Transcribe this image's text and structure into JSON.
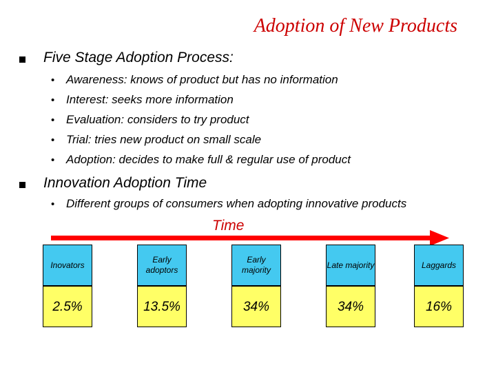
{
  "title": "Adoption of New Products",
  "section1": {
    "heading": "Five Stage Adoption Process:",
    "items": [
      "Awareness: knows of product but has no information",
      "Interest: seeks more information",
      "Evaluation: considers to try product",
      "Trial: tries new product on small scale",
      "Adoption: decides to make full & regular use of product"
    ]
  },
  "section2": {
    "heading": "Innovation Adoption Time",
    "items": [
      "Different groups of consumers when adopting innovative products"
    ]
  },
  "timeline": {
    "label": "Time",
    "groups": [
      {
        "name": "Inovators",
        "percent": "2.5%"
      },
      {
        "name": "Early adoptors",
        "percent": "13.5%"
      },
      {
        "name": "Early majority",
        "percent": "34%"
      },
      {
        "name": "Late majority",
        "percent": "34%"
      },
      {
        "name": "Laggards",
        "percent": "16%"
      }
    ]
  },
  "colors": {
    "title": "#cc0000",
    "arrow": "#ff0000",
    "group_box": "#44c9f0",
    "percent_box": "#ffff66"
  }
}
